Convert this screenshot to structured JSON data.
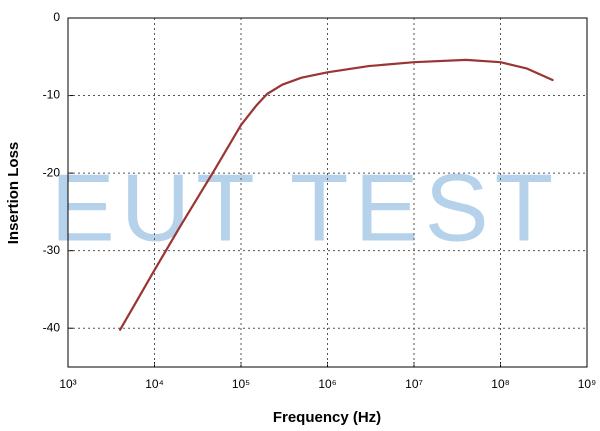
{
  "chart_data": {
    "type": "line",
    "x_label": "Frequency (Hz)",
    "y_label": "Insertion Loss",
    "watermark": "EUT TEST",
    "x": [
      4000,
      6000,
      10000,
      20000,
      50000,
      100000,
      150000,
      200000,
      300000,
      500000,
      1000000,
      3000000,
      10000000,
      40000000,
      100000000,
      200000000,
      400000000
    ],
    "series": [
      {
        "name": "Insertion Loss",
        "color": "#9b3434",
        "values": [
          -40.2,
          -36.8,
          -32.5,
          -26.8,
          -19.5,
          -13.8,
          -11.3,
          -9.8,
          -8.6,
          -7.7,
          -7.0,
          -6.2,
          -5.7,
          -5.4,
          -5.7,
          -6.5,
          -8.0
        ]
      }
    ],
    "xscale": "log",
    "xlim": [
      1000,
      1000000000
    ],
    "xticks": [
      {
        "value": 1000,
        "label": "10³"
      },
      {
        "value": 10000,
        "label": "10⁴"
      },
      {
        "value": 100000,
        "label": "10⁵"
      },
      {
        "value": 1000000,
        "label": "10⁶"
      },
      {
        "value": 10000000,
        "label": "10⁷"
      },
      {
        "value": 100000000,
        "label": "10⁸"
      },
      {
        "value": 1000000000,
        "label": "10⁹"
      }
    ],
    "ylim": [
      -45,
      0
    ],
    "yticks": [
      0,
      -10,
      -20,
      -30,
      -40
    ],
    "grid": true
  }
}
